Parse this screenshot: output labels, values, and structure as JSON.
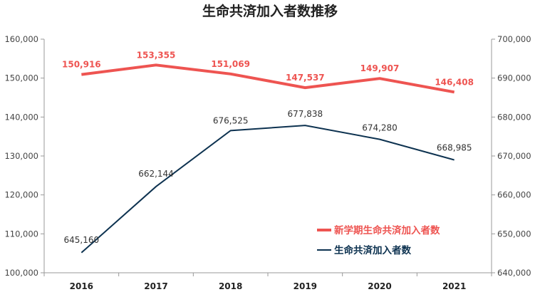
{
  "chart_data": {
    "type": "line",
    "title": "生命共済加入者数推移",
    "categories": [
      "2016",
      "2017",
      "2018",
      "2019",
      "2020",
      "2021"
    ],
    "y_left": {
      "range": [
        100000,
        160000
      ],
      "ticks": [
        "100,000",
        "110,000",
        "120,000",
        "130,000",
        "140,000",
        "150,000",
        "160,000"
      ]
    },
    "y_right": {
      "range": [
        640000,
        700000
      ],
      "ticks": [
        "640,000",
        "650,000",
        "660,000",
        "670,000",
        "680,000",
        "690,000",
        "700,000"
      ]
    },
    "series": [
      {
        "name": "新学期生命共済加入者数",
        "axis": "left",
        "color": "#ee5451",
        "values": [
          150916,
          153355,
          151069,
          147537,
          149907,
          146408
        ],
        "labels": [
          "150,916",
          "153,355",
          "151,069",
          "147,537",
          "149,907",
          "146,408"
        ]
      },
      {
        "name": "生命共済加入者数",
        "axis": "right",
        "color": "#0d3250",
        "values": [
          645160,
          662144,
          676525,
          677838,
          674280,
          668985
        ],
        "labels": [
          "645,160",
          "662,144",
          "676,525",
          "677,838",
          "674,280",
          "668,985"
        ]
      }
    ],
    "legend_position": "bottom-right",
    "grid": false
  }
}
